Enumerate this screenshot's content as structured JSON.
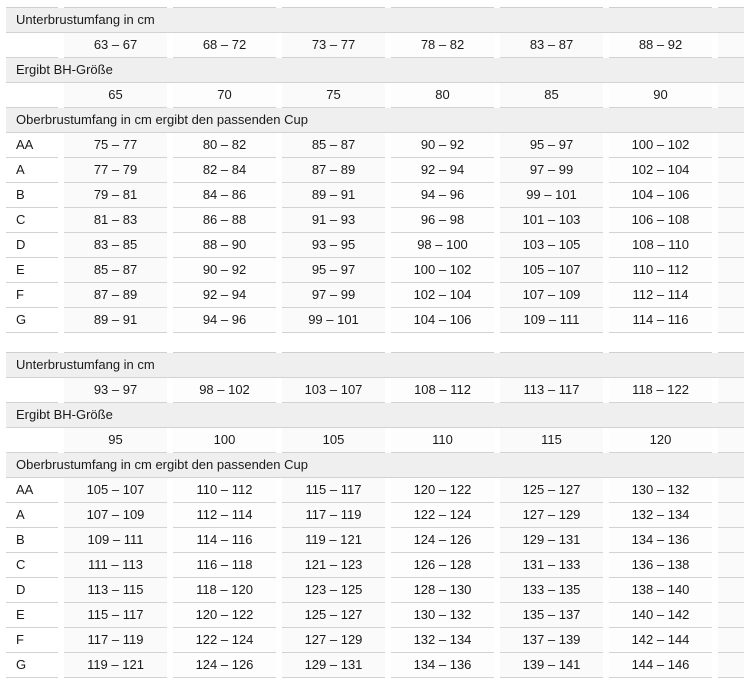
{
  "colors": {
    "header_band_bg": "#efefef",
    "row_rule": "#d2d2d2",
    "cell_tint_a": "#fafafa",
    "cell_tint_b": "#fdfdfd",
    "text": "#1a1a1a"
  },
  "tables": [
    {
      "underbust_label": "Unterbrustumfang in cm",
      "underbust_ranges": [
        "63 – 67",
        "68 – 72",
        "73 – 77",
        "78 – 82",
        "83 – 87",
        "88 – 92"
      ],
      "band_label": "Ergibt BH-Größe",
      "band_sizes": [
        "65",
        "70",
        "75",
        "80",
        "85",
        "90"
      ],
      "cup_label": "Oberbrustumfang in cm ergibt den passenden Cup",
      "cup_rows": [
        {
          "cup": "AA",
          "ranges": [
            "75 – 77",
            "80 – 82",
            "85 – 87",
            "90 – 92",
            "95 – 97",
            "100 – 102"
          ]
        },
        {
          "cup": "A",
          "ranges": [
            "77 – 79",
            "82 – 84",
            "87 – 89",
            "92 – 94",
            "97 – 99",
            "102 – 104"
          ]
        },
        {
          "cup": "B",
          "ranges": [
            "79 – 81",
            "84 – 86",
            "89 – 91",
            "94 – 96",
            "99 – 101",
            "104 – 106"
          ]
        },
        {
          "cup": "C",
          "ranges": [
            "81 – 83",
            "86 – 88",
            "91 – 93",
            "96 – 98",
            "101 – 103",
            "106 – 108"
          ]
        },
        {
          "cup": "D",
          "ranges": [
            "83 – 85",
            "88 – 90",
            "93 – 95",
            "98 – 100",
            "103 – 105",
            "108 – 110"
          ]
        },
        {
          "cup": "E",
          "ranges": [
            "85 – 87",
            "90 – 92",
            "95 – 97",
            "100 – 102",
            "105 – 107",
            "110 – 112"
          ]
        },
        {
          "cup": "F",
          "ranges": [
            "87 – 89",
            "92 – 94",
            "97 – 99",
            "102 – 104",
            "107 – 109",
            "112 – 114"
          ]
        },
        {
          "cup": "G",
          "ranges": [
            "89 – 91",
            "94 – 96",
            "99 – 101",
            "104 – 106",
            "109 – 111",
            "114 – 116"
          ]
        }
      ]
    },
    {
      "underbust_label": "Unterbrustumfang in cm",
      "underbust_ranges": [
        "93 – 97",
        "98 – 102",
        "103 – 107",
        "108 – 112",
        "113 – 117",
        "118 – 122"
      ],
      "band_label": "Ergibt BH-Größe",
      "band_sizes": [
        "95",
        "100",
        "105",
        "110",
        "115",
        "120"
      ],
      "cup_label": "Oberbrustumfang in cm ergibt den passenden Cup",
      "cup_rows": [
        {
          "cup": "AA",
          "ranges": [
            "105 – 107",
            "110 – 112",
            "115 – 117",
            "120 – 122",
            "125 – 127",
            "130 – 132"
          ]
        },
        {
          "cup": "A",
          "ranges": [
            "107 – 109",
            "112 – 114",
            "117 – 119",
            "122 – 124",
            "127 – 129",
            "132 – 134"
          ]
        },
        {
          "cup": "B",
          "ranges": [
            "109 – 111",
            "114 – 116",
            "119 – 121",
            "124 – 126",
            "129 – 131",
            "134 – 136"
          ]
        },
        {
          "cup": "C",
          "ranges": [
            "111 – 113",
            "116 – 118",
            "121 – 123",
            "126 – 128",
            "131 – 133",
            "136 – 138"
          ]
        },
        {
          "cup": "D",
          "ranges": [
            "113 – 115",
            "118 – 120",
            "123 – 125",
            "128 – 130",
            "133 – 135",
            "138 – 140"
          ]
        },
        {
          "cup": "E",
          "ranges": [
            "115 – 117",
            "120 – 122",
            "125 – 127",
            "130 – 132",
            "135 – 137",
            "140 – 142"
          ]
        },
        {
          "cup": "F",
          "ranges": [
            "117 – 119",
            "122 – 124",
            "127 – 129",
            "132 – 134",
            "137 – 139",
            "142 – 144"
          ]
        },
        {
          "cup": "G",
          "ranges": [
            "119 – 121",
            "124 – 126",
            "129 – 131",
            "134 – 136",
            "139 – 141",
            "144 – 146"
          ]
        }
      ]
    }
  ],
  "chart_data": [
    {
      "type": "table",
      "title": "BH-Größentabelle (Bänder 65–90)",
      "sections": [
        {
          "label": "Unterbrustumfang in cm",
          "values": [
            "63–67",
            "68–72",
            "73–77",
            "78–82",
            "83–87",
            "88–92"
          ]
        },
        {
          "label": "Ergibt BH-Größe",
          "values": [
            65,
            70,
            75,
            80,
            85,
            90
          ]
        }
      ],
      "cup_section_label": "Oberbrustumfang in cm ergibt den passenden Cup",
      "rows": [
        {
          "cup": "AA",
          "values": [
            "75–77",
            "80–82",
            "85–87",
            "90–92",
            "95–97",
            "100–102"
          ]
        },
        {
          "cup": "A",
          "values": [
            "77–79",
            "82–84",
            "87–89",
            "92–94",
            "97–99",
            "102–104"
          ]
        },
        {
          "cup": "B",
          "values": [
            "79–81",
            "84–86",
            "89–91",
            "94–96",
            "99–101",
            "104–106"
          ]
        },
        {
          "cup": "C",
          "values": [
            "81–83",
            "86–88",
            "91–93",
            "96–98",
            "101–103",
            "106–108"
          ]
        },
        {
          "cup": "D",
          "values": [
            "83–85",
            "88–90",
            "93–95",
            "98–100",
            "103–105",
            "108–110"
          ]
        },
        {
          "cup": "E",
          "values": [
            "85–87",
            "90–92",
            "95–97",
            "100–102",
            "105–107",
            "110–112"
          ]
        },
        {
          "cup": "F",
          "values": [
            "87–89",
            "92–94",
            "97–99",
            "102–104",
            "107–109",
            "112–114"
          ]
        },
        {
          "cup": "G",
          "values": [
            "89–91",
            "94–96",
            "99–101",
            "104–106",
            "109–111",
            "114–116"
          ]
        }
      ]
    },
    {
      "type": "table",
      "title": "BH-Größentabelle (Bänder 95–120)",
      "sections": [
        {
          "label": "Unterbrustumfang in cm",
          "values": [
            "93–97",
            "98–102",
            "103–107",
            "108–112",
            "113–117",
            "118–122"
          ]
        },
        {
          "label": "Ergibt BH-Größe",
          "values": [
            95,
            100,
            105,
            110,
            115,
            120
          ]
        }
      ],
      "cup_section_label": "Oberbrustumfang in cm ergibt den passenden Cup",
      "rows": [
        {
          "cup": "AA",
          "values": [
            "105–107",
            "110–112",
            "115–117",
            "120–122",
            "125–127",
            "130–132"
          ]
        },
        {
          "cup": "A",
          "values": [
            "107–109",
            "112–114",
            "117–119",
            "122–124",
            "127–129",
            "132–134"
          ]
        },
        {
          "cup": "B",
          "values": [
            "109–111",
            "114–116",
            "119–121",
            "124–126",
            "129–131",
            "134–136"
          ]
        },
        {
          "cup": "C",
          "values": [
            "111–113",
            "116–118",
            "121–123",
            "126–128",
            "131–133",
            "136–138"
          ]
        },
        {
          "cup": "D",
          "values": [
            "113–115",
            "118–120",
            "123–125",
            "128–130",
            "133–135",
            "138–140"
          ]
        },
        {
          "cup": "E",
          "values": [
            "115–117",
            "120–122",
            "125–127",
            "130–132",
            "135–137",
            "140–142"
          ]
        },
        {
          "cup": "F",
          "values": [
            "117–119",
            "122–124",
            "127–129",
            "132–134",
            "137–139",
            "142–144"
          ]
        },
        {
          "cup": "G",
          "values": [
            "119–121",
            "124–126",
            "129–131",
            "134–136",
            "139–141",
            "144–146"
          ]
        }
      ]
    }
  ]
}
